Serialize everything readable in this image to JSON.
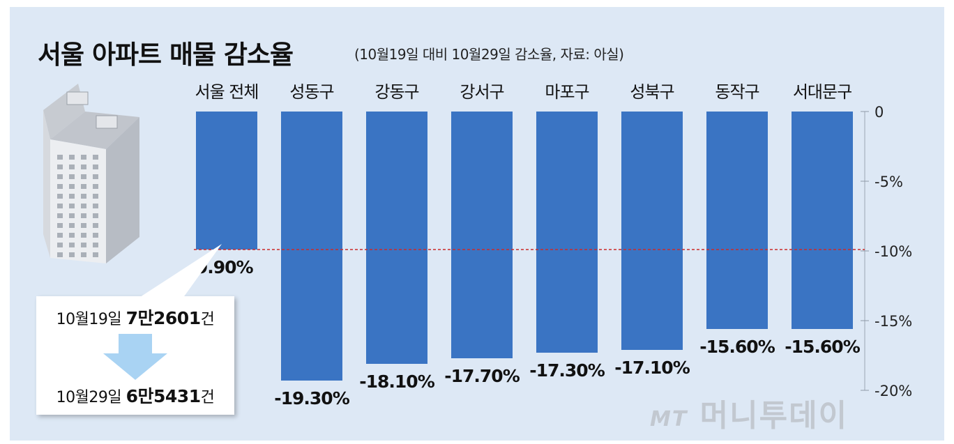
{
  "title": "서울 아파트 매물 감소율",
  "subtitle": "(10월19일 대비 10월29일 감소율, 자료: 아실)",
  "callout": {
    "line1_prefix": "10월19일 ",
    "line1_value": "7만2601",
    "line1_suffix": "건",
    "line2_prefix": "10월29일 ",
    "line2_value": "6만5431",
    "line2_suffix": "건"
  },
  "logo": {
    "mt": "MT",
    "name": "머니투데이"
  },
  "colors": {
    "bar": "#3a74c3",
    "panel": "#dde8f5",
    "reference_line": "#cc2a2a"
  },
  "chart_data": {
    "type": "bar",
    "title": "서울 아파트 매물 감소율",
    "categories": [
      "서울 전체",
      "성동구",
      "강동구",
      "강서구",
      "마포구",
      "성북구",
      "동작구",
      "서대문구"
    ],
    "values": [
      -9.9,
      -19.3,
      -18.1,
      -17.7,
      -17.3,
      -17.1,
      -15.6,
      -15.6
    ],
    "value_labels": [
      "-9.90%",
      "-19.30%",
      "-18.10%",
      "-17.70%",
      "-17.30%",
      "-17.10%",
      "-15.60%",
      "-15.60%"
    ],
    "y_ticks": [
      "0",
      "-5%",
      "-10%",
      "-15%",
      "-20%"
    ],
    "y_tick_values": [
      0,
      -5,
      -10,
      -15,
      -20
    ],
    "ylim": [
      -20,
      0
    ],
    "reference_line": -9.9,
    "legend": "none",
    "grid": "none"
  }
}
